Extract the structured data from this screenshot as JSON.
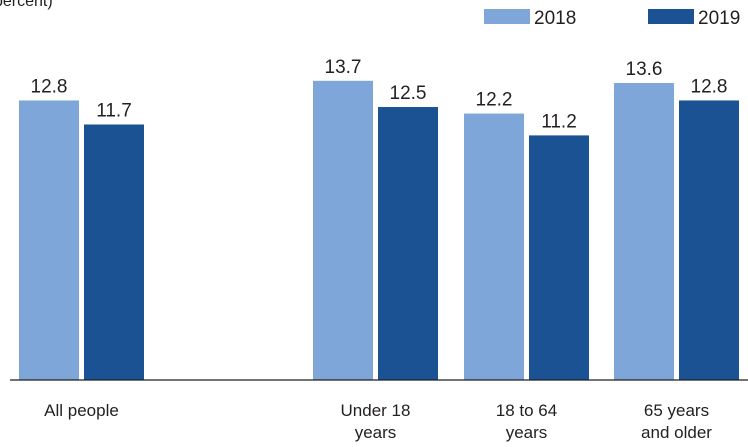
{
  "chart_data": {
    "type": "bar",
    "subtitle": "percent)",
    "categories": [
      [
        "All people"
      ],
      [
        "Under 18",
        "years"
      ],
      [
        "18 to 64",
        "years"
      ],
      [
        "65 years",
        "and older"
      ]
    ],
    "series": [
      {
        "name": "2018",
        "values": [
          12.8,
          13.7,
          12.2,
          13.6
        ],
        "labels": [
          "12.8",
          "13.7",
          "12.2",
          "13.6"
        ],
        "color": "#7fa6d9"
      },
      {
        "name": "2019",
        "values": [
          11.7,
          12.5,
          11.2,
          12.8
        ],
        "labels": [
          "11.7",
          "12.5",
          "11.2",
          "12.8"
        ],
        "color": "#1a5294"
      }
    ],
    "ylim": [
      0,
      17.4
    ],
    "grid": false,
    "legend": "top-right",
    "axis_color": "#231f20"
  }
}
